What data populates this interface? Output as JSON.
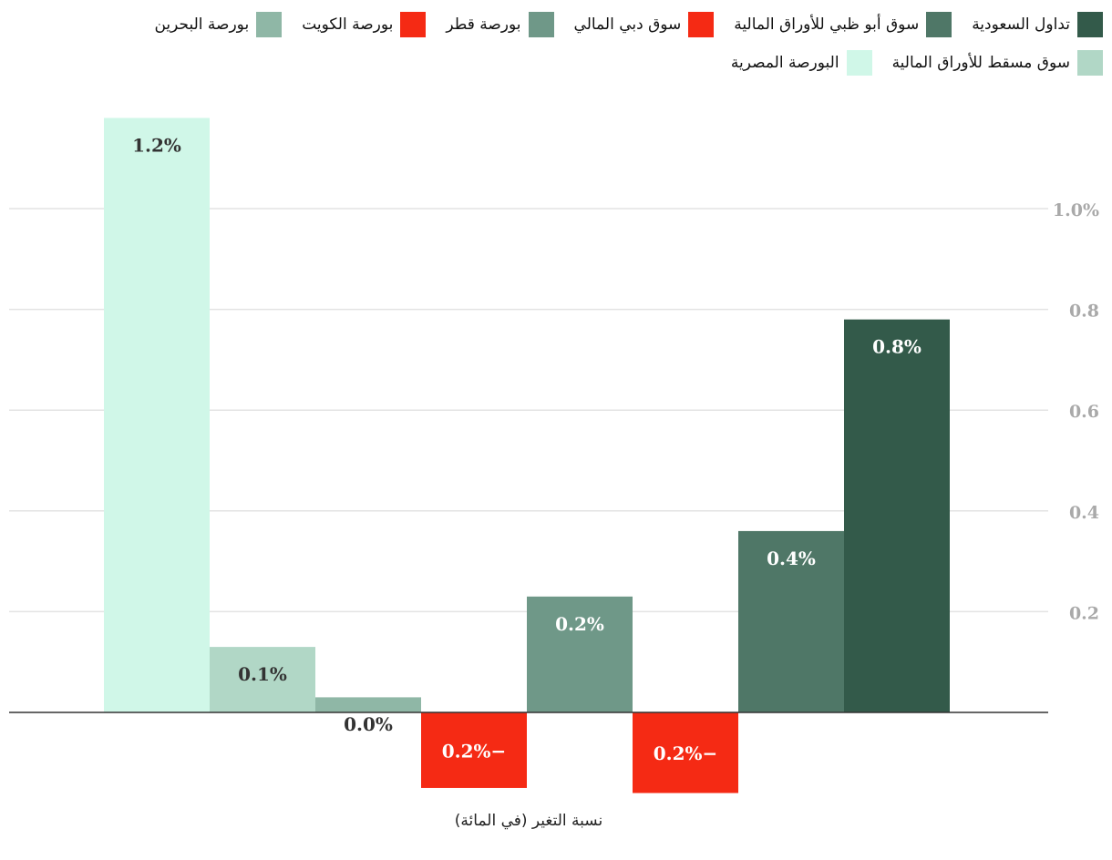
{
  "chart_data": {
    "type": "bar",
    "xlabel": "نسبة التغير (في المائة)",
    "ylim": [
      -0.16,
      1.2
    ],
    "ticks": [
      {
        "value": 0.2,
        "label": "0.2"
      },
      {
        "value": 0.4,
        "label": "0.4"
      },
      {
        "value": 0.6,
        "label": "0.6"
      },
      {
        "value": 0.8,
        "label": "0.8"
      },
      {
        "value": 1.0,
        "label": "1.0%"
      }
    ],
    "grid": true,
    "legend_position": "top",
    "series": [
      {
        "name": "تداول السعودية",
        "value": 0.78,
        "label": "0.8%",
        "color": "#335a4a",
        "label_color": "#ffffff"
      },
      {
        "name": "سوق أبو ظبي للأوراق المالية",
        "value": 0.36,
        "label": "0.4%",
        "color": "#4f7767",
        "label_color": "#ffffff"
      },
      {
        "name": "سوق دبي المالي",
        "value": -0.16,
        "label": "0.2%−",
        "color": "#f52a14",
        "label_color": "#ffffff"
      },
      {
        "name": "بورصة قطر",
        "value": 0.23,
        "label": "0.2%",
        "color": "#6f9888",
        "label_color": "#ffffff"
      },
      {
        "name": "بورصة الكويت",
        "value": -0.15,
        "label": "0.2%−",
        "color": "#f52a14",
        "label_color": "#ffffff"
      },
      {
        "name": "بورصة البحرين",
        "value": 0.03,
        "label": "0.0%",
        "color": "#8fb7a6",
        "label_color": "#333333"
      },
      {
        "name": "سوق مسقط للأوراق المالية",
        "value": 0.13,
        "label": "0.1%",
        "color": "#b1d7c6",
        "label_color": "#333333"
      },
      {
        "name": "البورصة المصرية",
        "value": 1.18,
        "label": "1.2%",
        "color": "#d0f7e8",
        "label_color": "#333333"
      }
    ]
  }
}
